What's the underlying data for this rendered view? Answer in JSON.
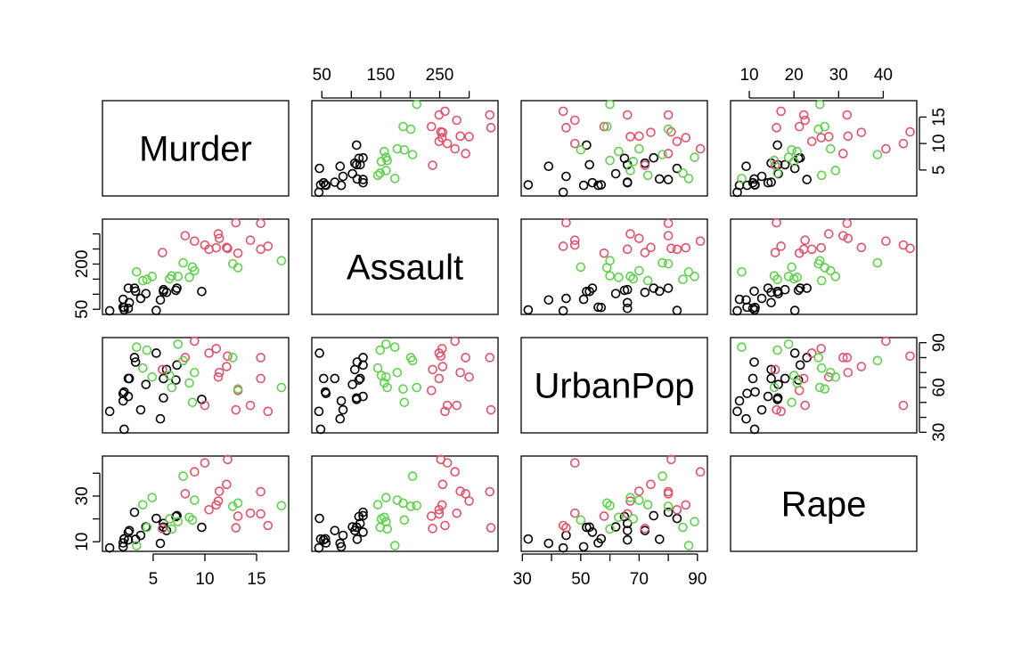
{
  "chart_data": {
    "type": "scatter_matrix",
    "variables": [
      {
        "name": "Murder",
        "lim": [
          0.1,
          18.1
        ],
        "axes": {
          "bottom": {
            "ticks": [
              5,
              10,
              15
            ]
          },
          "right": {
            "ticks": [
              5,
              10,
              15
            ]
          }
        }
      },
      {
        "name": "Assault",
        "lim": [
          33,
          349
        ],
        "axes": {
          "top": {
            "ticks": [
              50,
              150,
              250
            ],
            "minor_ticks": [
              100,
              200,
              300
            ]
          },
          "left": {
            "ticks": [
              50,
              200
            ],
            "minor_ticks": [
              100,
              150,
              250,
              300
            ]
          }
        }
      },
      {
        "name": "UrbanPop",
        "lim": [
          29.6,
          93.4
        ],
        "axes": {
          "bottom": {
            "ticks": [
              30,
              50,
              70,
              90
            ],
            "minor_ticks": [
              40,
              60,
              80
            ]
          },
          "right": {
            "ticks": [
              30,
              60,
              90
            ],
            "minor_ticks": [
              40,
              50,
              70,
              80
            ]
          }
        }
      },
      {
        "name": "Rape",
        "lim": [
          5.8,
          47.5
        ],
        "axes": {
          "top": {
            "ticks": [
              10,
              20,
              30,
              40
            ]
          },
          "left": {
            "ticks": [
              10,
              30
            ],
            "minor_ticks": [
              20,
              40
            ]
          }
        }
      }
    ],
    "series": [
      {
        "color": "#000000",
        "values": [
          [
            3.3,
            110,
            77,
            11.1
          ],
          [
            5.3,
            46,
            83,
            20.2
          ],
          [
            2.6,
            120,
            54,
            14.2
          ],
          [
            7.2,
            113,
            65,
            21.0
          ],
          [
            2.2,
            56,
            57,
            11.3
          ],
          [
            6.0,
            115,
            66,
            18.0
          ],
          [
            9.7,
            109,
            52,
            16.3
          ],
          [
            2.1,
            83,
            51,
            7.8
          ],
          [
            2.7,
            72,
            66,
            14.9
          ],
          [
            6.0,
            109,
            53,
            16.4
          ],
          [
            4.3,
            102,
            62,
            16.5
          ],
          [
            2.1,
            57,
            56,
            9.5
          ],
          [
            0.8,
            45,
            44,
            7.3
          ],
          [
            7.3,
            120,
            75,
            21.4
          ],
          [
            6.3,
            106,
            72,
            14.9
          ],
          [
            3.8,
            86,
            45,
            12.8
          ],
          [
            3.2,
            120,
            80,
            22.9
          ],
          [
            2.2,
            48,
            32,
            11.2
          ],
          [
            5.7,
            81,
            39,
            9.3
          ],
          [
            2.6,
            53,
            66,
            10.8
          ]
        ]
      },
      {
        "color": "#DF536B",
        "values": [
          [
            13.2,
            236,
            58,
            21.2
          ],
          [
            10.0,
            263,
            48,
            44.5
          ],
          [
            8.1,
            294,
            80,
            31.0
          ],
          [
            9.0,
            276,
            91,
            40.6
          ],
          [
            5.9,
            238,
            72,
            15.8
          ],
          [
            15.4,
            335,
            80,
            31.9
          ],
          [
            10.4,
            249,
            83,
            24.0
          ],
          [
            15.4,
            249,
            66,
            22.2
          ],
          [
            11.3,
            300,
            67,
            27.8
          ],
          [
            12.1,
            255,
            74,
            35.1
          ],
          [
            16.1,
            259,
            44,
            17.1
          ],
          [
            12.2,
            252,
            81,
            46.0
          ],
          [
            11.4,
            285,
            70,
            32.1
          ],
          [
            11.1,
            254,
            86,
            26.1
          ],
          [
            13.0,
            337,
            45,
            16.1
          ],
          [
            14.4,
            279,
            48,
            22.5
          ]
        ]
      },
      {
        "color": "#61D04F",
        "values": [
          [
            8.8,
            190,
            50,
            19.5
          ],
          [
            7.9,
            204,
            78,
            38.7
          ],
          [
            17.4,
            211,
            60,
            25.8
          ],
          [
            4.4,
            149,
            85,
            16.3
          ],
          [
            9.0,
            178,
            70,
            28.2
          ],
          [
            7.4,
            159,
            89,
            18.8
          ],
          [
            6.6,
            151,
            68,
            20.0
          ],
          [
            4.9,
            159,
            67,
            29.3
          ],
          [
            3.4,
            174,
            87,
            8.3
          ],
          [
            13.2,
            188,
            59,
            26.9
          ],
          [
            12.7,
            201,
            80,
            25.5
          ],
          [
            8.5,
            156,
            63,
            20.7
          ],
          [
            4.0,
            145,
            73,
            26.2
          ],
          [
            6.8,
            161,
            60,
            15.6
          ]
        ]
      }
    ]
  }
}
